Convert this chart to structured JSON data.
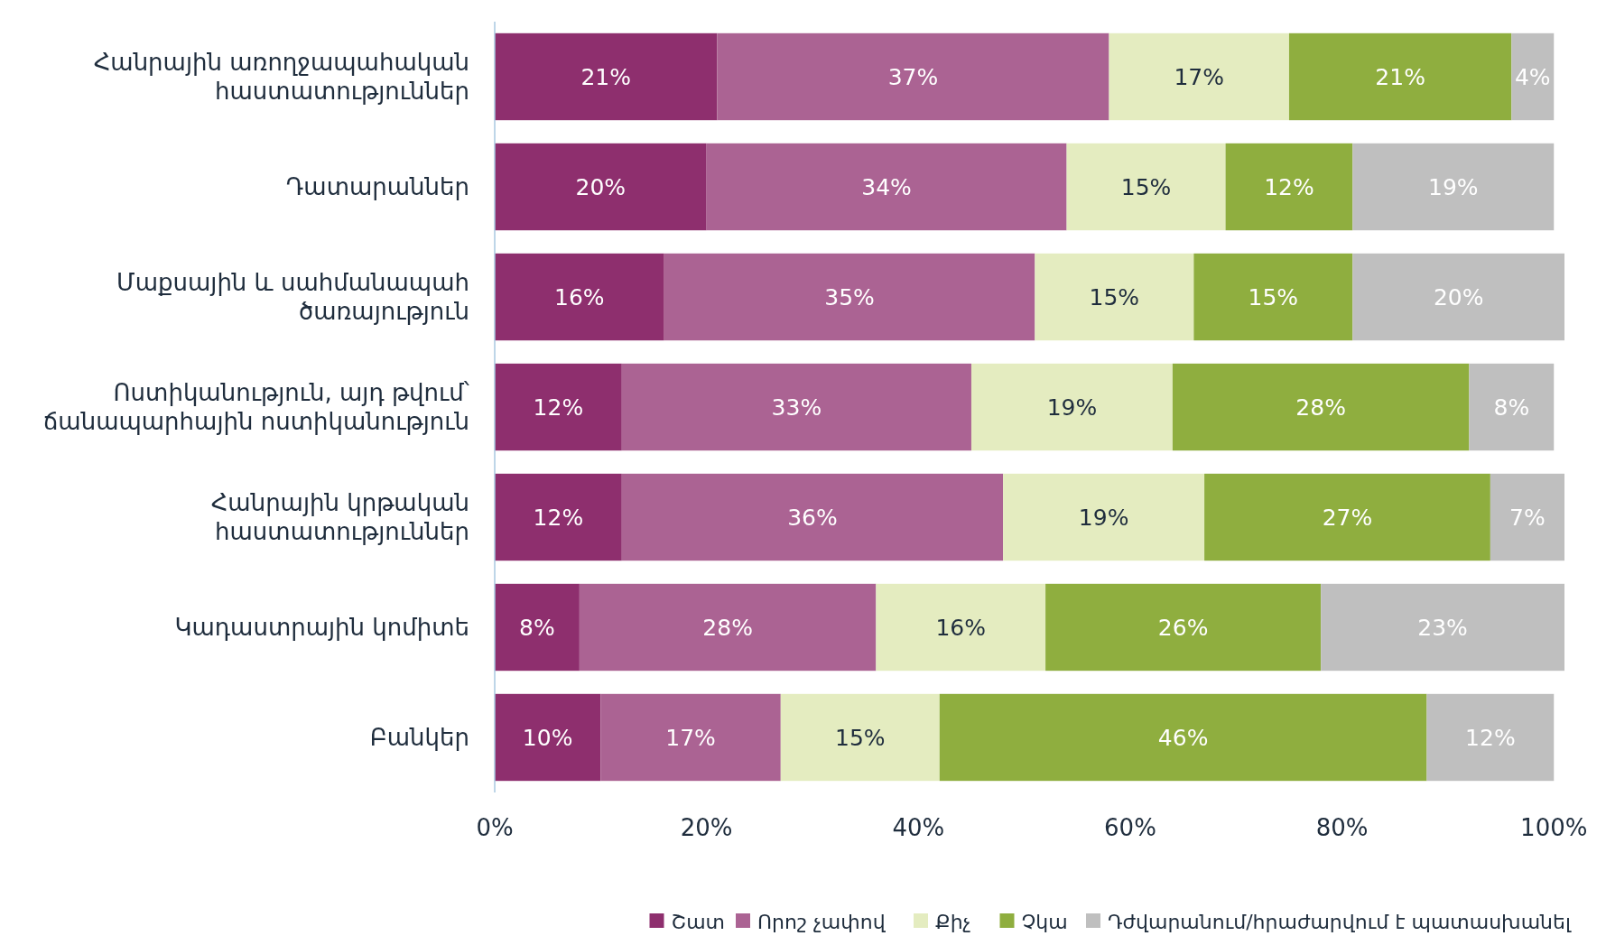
{
  "chart_data": {
    "type": "bar",
    "orientation": "horizontal",
    "stacked": true,
    "grid": false,
    "legend": "bottom",
    "categories": [
      "Հանրային առողջապահական հաստատություններ",
      "Դատարաններ",
      "Մաքսային և սահմանապահ ծառայություն",
      "Ոստիկանություն, այդ թվում՝ ճանապարհային ոստիկանություն",
      "Հանրային կրթական հաստատություններ",
      "Կադաստրային կոմիտե",
      "Բանկեր"
    ],
    "series": [
      {
        "name": "Շատ",
        "color": "#8e2f6e",
        "values": [
          21,
          20,
          16,
          12,
          12,
          8,
          10
        ],
        "value_labels": [
          "21%",
          "20%",
          "16%",
          "12%",
          "12%",
          "8%",
          "10%"
        ]
      },
      {
        "name": "Որոշ չափով",
        "color": "#ab6393",
        "values": [
          37,
          34,
          35,
          33,
          36,
          28,
          17
        ],
        "value_labels": [
          "37%",
          "34%",
          "35%",
          "33%",
          "36%",
          "28%",
          "17%"
        ]
      },
      {
        "name": "Քիչ",
        "color": "#e4ecc0",
        "values": [
          17,
          15,
          15,
          19,
          19,
          16,
          15
        ],
        "value_labels": [
          "17%",
          "15%",
          "15%",
          "19%",
          "19%",
          "16%",
          "15%"
        ]
      },
      {
        "name": "Չկա",
        "color": "#8fae3f",
        "values": [
          21,
          12,
          15,
          28,
          27,
          26,
          46
        ],
        "value_labels": [
          "21%",
          "12%",
          "15%",
          "28%",
          "27%",
          "26%",
          "46%"
        ]
      },
      {
        "name": "Դժվարանում/հրաժարվում է պատասխանել",
        "color": "#bfbfbf",
        "values": [
          4,
          19,
          20,
          8,
          7,
          23,
          12
        ],
        "value_labels": [
          "4%",
          "19%",
          "20%",
          "8%",
          "7%",
          "23%",
          "12%"
        ]
      }
    ],
    "xlim": [
      0,
      101
    ],
    "xticks": [
      {
        "value": 0,
        "label": "0%"
      },
      {
        "value": 20,
        "label": "20%"
      },
      {
        "value": 40,
        "label": "40%"
      },
      {
        "value": 60,
        "label": "60%"
      },
      {
        "value": 80,
        "label": "80%"
      },
      {
        "value": 100,
        "label": "100%"
      }
    ]
  }
}
